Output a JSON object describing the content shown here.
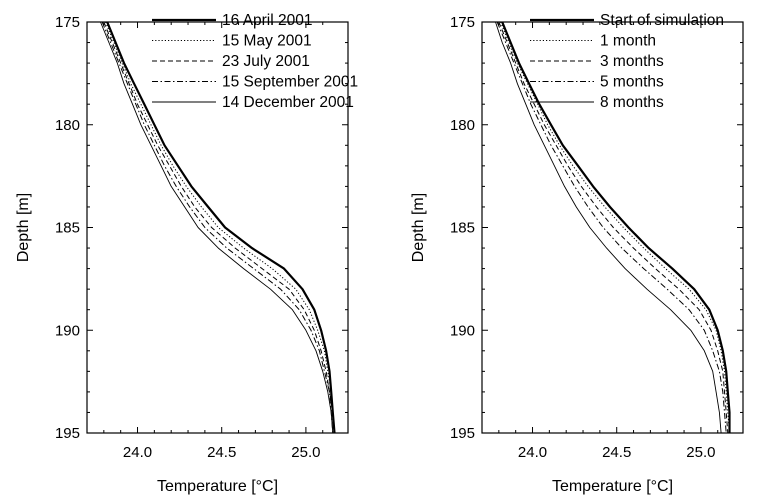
{
  "chart_data": [
    {
      "type": "line",
      "xlabel": "Temperature [°C]",
      "ylabel": "Depth [m]",
      "xlim": [
        23.7,
        25.25
      ],
      "ylim": [
        195,
        175
      ],
      "y_inverted": true,
      "xticks": [
        "24.0",
        "24.5",
        "25.0"
      ],
      "yticks": [
        "175",
        "180",
        "185",
        "190",
        "195"
      ],
      "legend_position": "top-right",
      "series": [
        {
          "name": "16 April 2001",
          "style": "solid-thick",
          "points": [
            [
              23.82,
              175
            ],
            [
              23.87,
              176
            ],
            [
              23.92,
              177
            ],
            [
              23.98,
              178
            ],
            [
              24.04,
              179
            ],
            [
              24.1,
              180
            ],
            [
              24.16,
              181
            ],
            [
              24.24,
              182
            ],
            [
              24.32,
              183
            ],
            [
              24.42,
              184
            ],
            [
              24.52,
              185
            ],
            [
              24.68,
              186
            ],
            [
              24.87,
              187
            ],
            [
              24.98,
              188
            ],
            [
              25.05,
              189
            ],
            [
              25.09,
              190
            ],
            [
              25.12,
              191
            ],
            [
              25.14,
              192
            ],
            [
              25.15,
              193
            ],
            [
              25.16,
              194
            ],
            [
              25.17,
              195
            ]
          ]
        },
        {
          "name": "15 May 2001",
          "style": "dotted",
          "points": [
            [
              23.81,
              175
            ],
            [
              23.86,
              176
            ],
            [
              23.91,
              177
            ],
            [
              23.96,
              178
            ],
            [
              24.02,
              179
            ],
            [
              24.08,
              180
            ],
            [
              24.14,
              181
            ],
            [
              24.21,
              182
            ],
            [
              24.29,
              183
            ],
            [
              24.38,
              184
            ],
            [
              24.48,
              185
            ],
            [
              24.63,
              186
            ],
            [
              24.8,
              187
            ],
            [
              24.94,
              188
            ],
            [
              25.02,
              189
            ],
            [
              25.07,
              190
            ],
            [
              25.11,
              191
            ],
            [
              25.13,
              192
            ],
            [
              25.15,
              193
            ],
            [
              25.16,
              194
            ],
            [
              25.17,
              195
            ]
          ]
        },
        {
          "name": "23 July 2001",
          "style": "dashed",
          "points": [
            [
              23.8,
              175
            ],
            [
              23.85,
              176
            ],
            [
              23.9,
              177
            ],
            [
              23.95,
              178
            ],
            [
              24.0,
              179
            ],
            [
              24.06,
              180
            ],
            [
              24.12,
              181
            ],
            [
              24.19,
              182
            ],
            [
              24.26,
              183
            ],
            [
              24.34,
              184
            ],
            [
              24.44,
              185
            ],
            [
              24.58,
              186
            ],
            [
              24.74,
              187
            ],
            [
              24.9,
              188
            ],
            [
              24.99,
              189
            ],
            [
              25.05,
              190
            ],
            [
              25.09,
              191
            ],
            [
              25.12,
              192
            ],
            [
              25.14,
              193
            ],
            [
              25.16,
              194
            ],
            [
              25.17,
              195
            ]
          ]
        },
        {
          "name": "15 September 2001",
          "style": "dashdot",
          "points": [
            [
              23.79,
              175
            ],
            [
              23.84,
              176
            ],
            [
              23.89,
              177
            ],
            [
              23.94,
              178
            ],
            [
              23.99,
              179
            ],
            [
              24.04,
              180
            ],
            [
              24.1,
              181
            ],
            [
              24.16,
              182
            ],
            [
              24.23,
              183
            ],
            [
              24.31,
              184
            ],
            [
              24.4,
              185
            ],
            [
              24.53,
              186
            ],
            [
              24.69,
              187
            ],
            [
              24.85,
              188
            ],
            [
              24.96,
              189
            ],
            [
              25.03,
              190
            ],
            [
              25.08,
              191
            ],
            [
              25.11,
              192
            ],
            [
              25.14,
              193
            ],
            [
              25.15,
              194
            ],
            [
              25.16,
              195
            ]
          ]
        },
        {
          "name": "14 December 2001",
          "style": "solid-thin",
          "points": [
            [
              23.78,
              175
            ],
            [
              23.83,
              176
            ],
            [
              23.88,
              177
            ],
            [
              23.92,
              178
            ],
            [
              23.97,
              179
            ],
            [
              24.02,
              180
            ],
            [
              24.08,
              181
            ],
            [
              24.14,
              182
            ],
            [
              24.2,
              183
            ],
            [
              24.28,
              184
            ],
            [
              24.36,
              185
            ],
            [
              24.48,
              186
            ],
            [
              24.63,
              187
            ],
            [
              24.79,
              188
            ],
            [
              24.92,
              189
            ],
            [
              25.0,
              190
            ],
            [
              25.06,
              191
            ],
            [
              25.1,
              192
            ],
            [
              25.13,
              193
            ],
            [
              25.15,
              194
            ],
            [
              25.16,
              195
            ]
          ]
        }
      ]
    },
    {
      "type": "line",
      "xlabel": "Temperature [°C]",
      "ylabel": "Depth [m]",
      "xlim": [
        23.7,
        25.25
      ],
      "ylim": [
        195,
        175
      ],
      "y_inverted": true,
      "xticks": [
        "24.0",
        "24.5",
        "25.0"
      ],
      "yticks": [
        "175",
        "180",
        "185",
        "190",
        "195"
      ],
      "legend_position": "top-right",
      "series": [
        {
          "name": "Start of simulation",
          "style": "solid-thick",
          "points": [
            [
              23.82,
              175
            ],
            [
              23.87,
              176
            ],
            [
              23.92,
              177
            ],
            [
              23.98,
              178
            ],
            [
              24.04,
              179
            ],
            [
              24.11,
              180
            ],
            [
              24.18,
              181
            ],
            [
              24.27,
              182
            ],
            [
              24.36,
              183
            ],
            [
              24.46,
              184
            ],
            [
              24.57,
              185
            ],
            [
              24.69,
              186
            ],
            [
              24.83,
              187
            ],
            [
              24.96,
              188
            ],
            [
              25.05,
              189
            ],
            [
              25.1,
              190
            ],
            [
              25.13,
              191
            ],
            [
              25.15,
              192
            ],
            [
              25.16,
              193
            ],
            [
              25.17,
              194
            ],
            [
              25.17,
              195
            ]
          ]
        },
        {
          "name": "1 month",
          "style": "dotted",
          "points": [
            [
              23.81,
              175
            ],
            [
              23.86,
              176
            ],
            [
              23.91,
              177
            ],
            [
              23.97,
              178
            ],
            [
              24.03,
              179
            ],
            [
              24.09,
              180
            ],
            [
              24.16,
              181
            ],
            [
              24.24,
              182
            ],
            [
              24.33,
              183
            ],
            [
              24.43,
              184
            ],
            [
              24.54,
              185
            ],
            [
              24.66,
              186
            ],
            [
              24.79,
              187
            ],
            [
              24.93,
              188
            ],
            [
              25.03,
              189
            ],
            [
              25.09,
              190
            ],
            [
              25.12,
              191
            ],
            [
              25.14,
              192
            ],
            [
              25.15,
              193
            ],
            [
              25.16,
              194
            ],
            [
              25.17,
              195
            ]
          ]
        },
        {
          "name": "3 months",
          "style": "dashed",
          "points": [
            [
              23.8,
              175
            ],
            [
              23.85,
              176
            ],
            [
              23.9,
              177
            ],
            [
              23.95,
              178
            ],
            [
              24.01,
              179
            ],
            [
              24.07,
              180
            ],
            [
              24.14,
              181
            ],
            [
              24.21,
              182
            ],
            [
              24.29,
              183
            ],
            [
              24.38,
              184
            ],
            [
              24.48,
              185
            ],
            [
              24.6,
              186
            ],
            [
              24.73,
              187
            ],
            [
              24.87,
              188
            ],
            [
              24.99,
              189
            ],
            [
              25.06,
              190
            ],
            [
              25.1,
              191
            ],
            [
              25.13,
              192
            ],
            [
              25.14,
              193
            ],
            [
              25.15,
              194
            ],
            [
              25.16,
              195
            ]
          ]
        },
        {
          "name": "5 months",
          "style": "dashdot",
          "points": [
            [
              23.79,
              175
            ],
            [
              23.84,
              176
            ],
            [
              23.89,
              177
            ],
            [
              23.94,
              178
            ],
            [
              23.99,
              179
            ],
            [
              24.05,
              180
            ],
            [
              24.11,
              181
            ],
            [
              24.18,
              182
            ],
            [
              24.25,
              183
            ],
            [
              24.33,
              184
            ],
            [
              24.42,
              185
            ],
            [
              24.53,
              186
            ],
            [
              24.66,
              187
            ],
            [
              24.8,
              188
            ],
            [
              24.93,
              189
            ],
            [
              25.02,
              190
            ],
            [
              25.07,
              191
            ],
            [
              25.11,
              192
            ],
            [
              25.13,
              193
            ],
            [
              25.14,
              194
            ],
            [
              25.15,
              195
            ]
          ]
        },
        {
          "name": "8 months",
          "style": "solid-thin",
          "points": [
            [
              23.78,
              175
            ],
            [
              23.82,
              176
            ],
            [
              23.87,
              177
            ],
            [
              23.91,
              178
            ],
            [
              23.96,
              179
            ],
            [
              24.01,
              180
            ],
            [
              24.07,
              181
            ],
            [
              24.13,
              182
            ],
            [
              24.19,
              183
            ],
            [
              24.26,
              184
            ],
            [
              24.34,
              185
            ],
            [
              24.44,
              186
            ],
            [
              24.55,
              187
            ],
            [
              24.68,
              188
            ],
            [
              24.82,
              189
            ],
            [
              24.94,
              190
            ],
            [
              25.02,
              191
            ],
            [
              25.07,
              192
            ],
            [
              25.09,
              193
            ],
            [
              25.11,
              194
            ],
            [
              25.12,
              195
            ]
          ]
        }
      ]
    }
  ]
}
